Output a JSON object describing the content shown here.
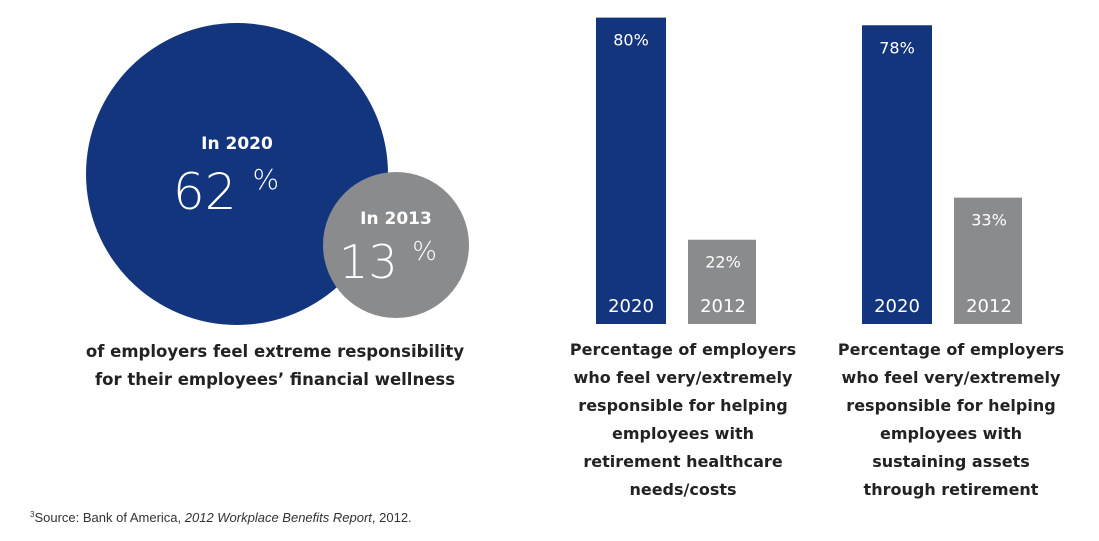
{
  "chart_data": [
    {
      "type": "bubble",
      "series": [
        {
          "name": "In 2020",
          "value": 62,
          "unit": "%",
          "color": "#13357d"
        },
        {
          "name": "In 2013",
          "value": 13,
          "unit": "%",
          "color": "#8a8b8d"
        }
      ],
      "caption": "of employers feel extreme responsibility for their employees’ financial wellness"
    },
    {
      "type": "bar",
      "categories": [
        "2020",
        "2012"
      ],
      "values": [
        80,
        22
      ],
      "value_labels": [
        "80%",
        "22%"
      ],
      "colors": [
        "#13357d",
        "#8a8b8d"
      ],
      "ylim": [
        0,
        100
      ],
      "caption_lines": [
        "Percentage of employers",
        "who feel very/extremely",
        "responsible for helping",
        "employees with",
        "retirement healthcare",
        "needs/costs"
      ]
    },
    {
      "type": "bar",
      "categories": [
        "2020",
        "2012"
      ],
      "values": [
        78,
        33
      ],
      "value_labels": [
        "78%",
        "33%"
      ],
      "colors": [
        "#13357d",
        "#8a8b8d"
      ],
      "ylim": [
        0,
        100
      ],
      "caption_lines": [
        "Percentage of employers",
        "who feel very/extremely",
        "responsible for helping",
        "employees with",
        "sustaining assets",
        "through retirement"
      ]
    }
  ],
  "bubble_caption_lines": [
    "of employers feel extreme responsibility",
    "for their employees’ financial wellness"
  ],
  "footnote": {
    "marker": "3",
    "prefix": "Source: Bank of America, ",
    "title": "2012 Workplace Benefits Report",
    "suffix": ", 2012."
  }
}
